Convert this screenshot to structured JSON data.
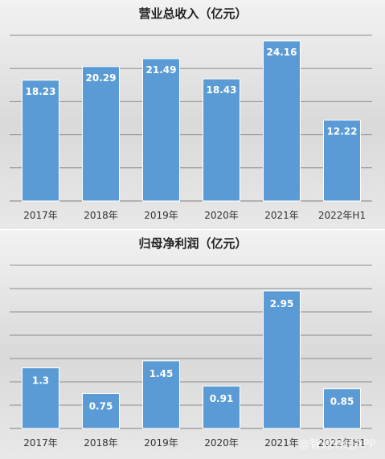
{
  "chart_data": [
    {
      "type": "bar",
      "title": "营业总收入（亿元）",
      "categories": [
        "2017年",
        "2018年",
        "2019年",
        "2020年",
        "2021年",
        "2022年H1"
      ],
      "values": [
        18.23,
        20.29,
        21.49,
        18.43,
        24.16,
        12.22
      ],
      "data_labels": [
        "18.23",
        "20.29",
        "21.49",
        "18.43",
        "24.16",
        "12.22"
      ],
      "ylim": [
        0,
        25
      ],
      "gridlines": [
        5,
        10,
        15,
        20,
        25
      ],
      "grid": true,
      "legend": "none",
      "colors": {
        "bar": "#5b9bd5",
        "background": "#d9d9d9",
        "grid": "#8c8c8c"
      }
    },
    {
      "type": "bar",
      "title": "归母净利润（亿元）",
      "categories": [
        "2017年",
        "2018年",
        "2019年",
        "2020年",
        "2021年",
        "2022年H1"
      ],
      "values": [
        1.3,
        0.75,
        1.45,
        0.91,
        2.95,
        0.85
      ],
      "data_labels": [
        "1.3",
        "0.75",
        "1.45",
        "0.91",
        "2.95",
        "0.85"
      ],
      "ylim": [
        0,
        3.5
      ],
      "gridlines": [
        0.5,
        1.0,
        1.5,
        2.0,
        2.5,
        3.0,
        3.5
      ],
      "grid": true,
      "legend": "none",
      "colors": {
        "bar": "#5b9bd5",
        "background": "#d9d9d9",
        "grid": "#8c8c8c"
      }
    }
  ],
  "watermark": "@智通财经APP"
}
